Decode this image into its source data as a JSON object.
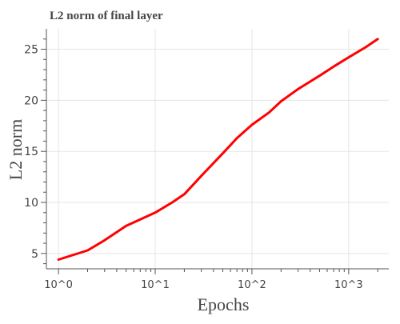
{
  "chart_data": {
    "type": "line",
    "title": "L2 norm of final layer",
    "xlabel": "Epochs",
    "ylabel": "L2 norm",
    "x_scale": "log",
    "xlim": [
      0.75,
      2600
    ],
    "ylim": [
      3.5,
      27
    ],
    "x_ticks": [
      {
        "value": 1,
        "label": "10^0"
      },
      {
        "value": 10,
        "label": "10^1"
      },
      {
        "value": 100,
        "label": "10^2"
      },
      {
        "value": 1000,
        "label": "10^3"
      }
    ],
    "y_ticks": [
      5,
      10,
      15,
      20,
      25
    ],
    "grid": true,
    "color": "#ff0000",
    "series": [
      {
        "x": [
          1,
          2,
          3,
          5,
          10,
          15,
          20,
          30,
          50,
          70,
          100,
          150,
          200,
          300,
          500,
          700,
          1000,
          1500,
          2000
        ],
        "y": [
          4.4,
          5.3,
          6.3,
          7.7,
          9.0,
          10.0,
          10.8,
          12.6,
          14.8,
          16.3,
          17.6,
          18.8,
          19.9,
          21.1,
          22.4,
          23.3,
          24.2,
          25.2,
          26.0
        ]
      }
    ]
  }
}
